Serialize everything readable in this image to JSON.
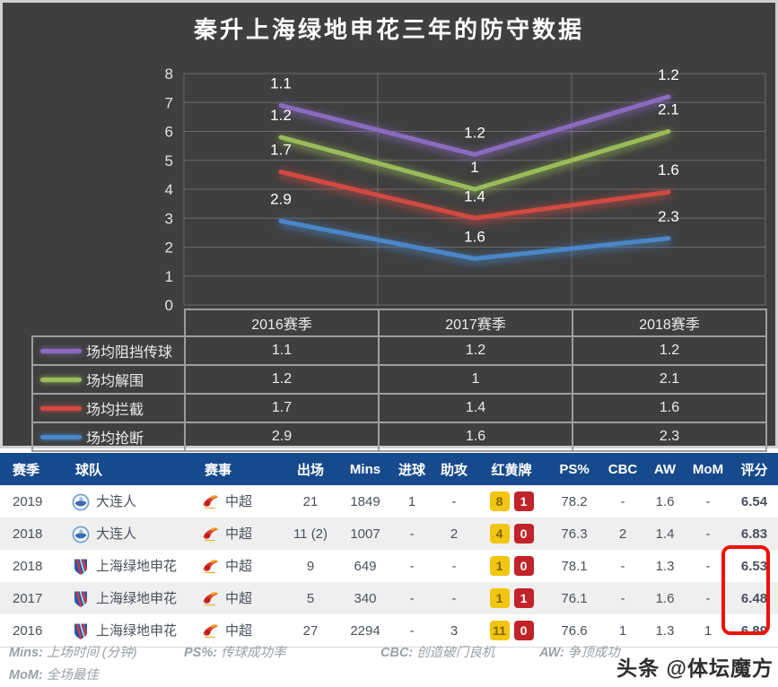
{
  "title": "秦升上海绿地申花三年的防守数据",
  "colors": {
    "panel_bg": "#3f3f3f",
    "grid_line": "rgba(255,255,255,0.22)",
    "legend_border": "#9e9e9e",
    "table_header_bg": "#174a8c",
    "row_alt_bg": "#efefef",
    "rating_text": "#e4572b",
    "yellow_card_bg": "#f2c511",
    "red_card_bg": "#c02329",
    "highlight_border": "#f21000"
  },
  "chart_data": {
    "type": "line",
    "stacked": true,
    "title": "秦升上海绿地申花三年的防守数据",
    "categories": [
      "2016赛季",
      "2017赛季",
      "2018赛季"
    ],
    "series": [
      {
        "name": "场均阻挡传球",
        "color": "#8a6bbf",
        "values": [
          1.1,
          1.2,
          1.2
        ]
      },
      {
        "name": "场均解围",
        "color": "#9bbb59",
        "values": [
          1.2,
          1,
          2.1
        ]
      },
      {
        "name": "场均拦截",
        "color": "#d04a42",
        "values": [
          1.7,
          1.4,
          1.6
        ]
      },
      {
        "name": "场均抢断",
        "color": "#4a86c8",
        "values": [
          2.9,
          1.6,
          2.3
        ]
      }
    ],
    "xlabel": "",
    "ylabel": "",
    "ylim": [
      0,
      8
    ],
    "ytick_step": 1,
    "grid": true,
    "value_labels": true,
    "legend_position": "table-below"
  },
  "legend_table": {
    "col_headers": [
      "2016赛季",
      "2017赛季",
      "2018赛季"
    ]
  },
  "stats_table": {
    "headers": [
      "赛季",
      "球队",
      "赛事",
      "出场",
      "Mins",
      "进球",
      "助攻",
      "红黄牌",
      "PS%",
      "CBC",
      "AW",
      "MoM",
      "评分"
    ],
    "rows": [
      {
        "season": "2019",
        "team": "大连人",
        "team_logo": "dalian",
        "competition": "中超",
        "competition_logo": "csl",
        "apps": "21",
        "mins": "1849",
        "goals": "1",
        "assists": "-",
        "yellow": "8",
        "red": "1",
        "ps": "78.2",
        "cbc": "-",
        "aw": "1.6",
        "mom": "-",
        "rating": "6.54",
        "highlighted": false
      },
      {
        "season": "2018",
        "team": "大连人",
        "team_logo": "dalian",
        "competition": "中超",
        "competition_logo": "csl",
        "apps": "11 (2)",
        "mins": "1007",
        "goals": "-",
        "assists": "2",
        "yellow": "4",
        "red": "0",
        "ps": "76.3",
        "cbc": "2",
        "aw": "1.4",
        "mom": "-",
        "rating": "6.83",
        "highlighted": false
      },
      {
        "season": "2018",
        "team": "上海绿地申花",
        "team_logo": "shenhua",
        "competition": "中超",
        "competition_logo": "csl",
        "apps": "9",
        "mins": "649",
        "goals": "-",
        "assists": "-",
        "yellow": "1",
        "red": "0",
        "ps": "78.1",
        "cbc": "-",
        "aw": "1.3",
        "mom": "-",
        "rating": "6.53",
        "highlighted": true
      },
      {
        "season": "2017",
        "team": "上海绿地申花",
        "team_logo": "shenhua",
        "competition": "中超",
        "competition_logo": "csl",
        "apps": "5",
        "mins": "340",
        "goals": "-",
        "assists": "-",
        "yellow": "1",
        "red": "1",
        "ps": "76.1",
        "cbc": "-",
        "aw": "1.6",
        "mom": "-",
        "rating": "6.48",
        "highlighted": true
      },
      {
        "season": "2016",
        "team": "上海绿地申花",
        "team_logo": "shenhua",
        "competition": "中超",
        "competition_logo": "csl",
        "apps": "27",
        "mins": "2294",
        "goals": "-",
        "assists": "3",
        "yellow": "11",
        "red": "0",
        "ps": "76.6",
        "cbc": "1",
        "aw": "1.3",
        "mom": "1",
        "rating": "6.89",
        "highlighted": true
      }
    ]
  },
  "footnotes": [
    {
      "abbr": "Mins:",
      "desc": "上场时间 (分钟)"
    },
    {
      "abbr": "PS%:",
      "desc": "传球成功率"
    },
    {
      "abbr": "CBC:",
      "desc": "创造破门良机"
    },
    {
      "abbr": "AW:",
      "desc": "争顶成功"
    },
    {
      "abbr": "MoM:",
      "desc": "全场最佳"
    }
  ],
  "watermark": "头条 @体坛魔方"
}
